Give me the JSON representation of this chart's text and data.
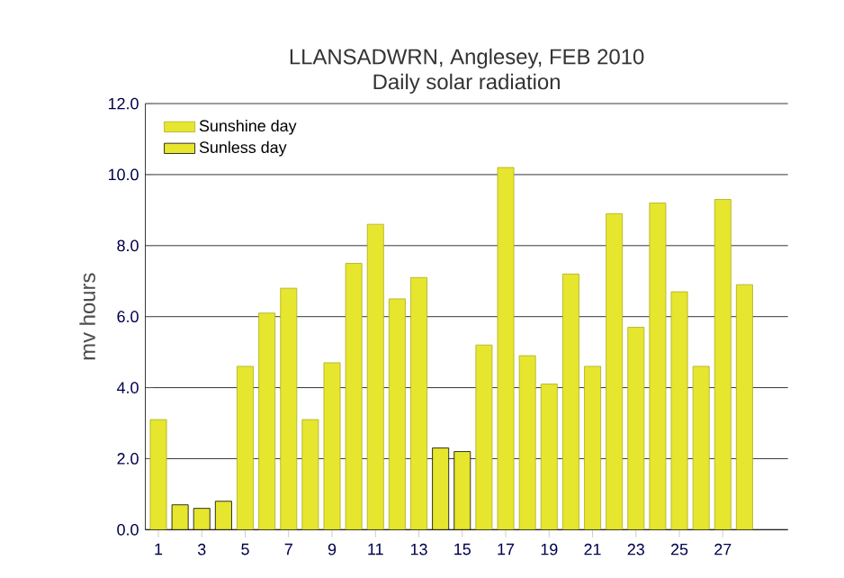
{
  "chart_data": {
    "type": "bar",
    "title": "LLANSADWRN, Anglesey, FEB 2010",
    "subtitle": "Daily solar radiation",
    "ylabel": "mv hours",
    "categories": [
      "1",
      null,
      "3",
      null,
      "5",
      null,
      "7",
      null,
      "9",
      null,
      "11",
      null,
      "13",
      null,
      "15",
      null,
      "17",
      null,
      "19",
      null,
      "21",
      null,
      "23",
      null,
      "25",
      null,
      "27",
      null
    ],
    "series": [
      {
        "name": "Sunshine day",
        "color": "#e6e62e",
        "values": [
          3.1,
          null,
          null,
          null,
          4.6,
          6.1,
          6.8,
          3.1,
          4.7,
          7.5,
          8.6,
          6.5,
          7.1,
          null,
          null,
          5.2,
          10.2,
          4.9,
          4.1,
          7.2,
          4.6,
          8.9,
          5.7,
          9.2,
          6.7,
          4.6,
          9.3,
          6.9
        ]
      },
      {
        "name": "Sunless day",
        "color": "#e6e62e",
        "values": [
          null,
          0.7,
          0.6,
          0.8,
          null,
          null,
          null,
          null,
          null,
          null,
          null,
          null,
          null,
          2.3,
          2.2,
          null,
          null,
          null,
          null,
          null,
          null,
          null,
          null,
          null,
          null,
          null,
          null,
          null
        ]
      }
    ],
    "ylim": [
      0,
      12
    ],
    "yticks": [
      {
        "value": 0,
        "label": "0.0"
      },
      {
        "value": 2,
        "label": "2.0"
      },
      {
        "value": 4,
        "label": "4.0"
      },
      {
        "value": 6,
        "label": "6.0"
      },
      {
        "value": 8,
        "label": "8.0"
      },
      {
        "value": 10,
        "label": "10.0"
      },
      {
        "value": 12,
        "label": "12.0"
      }
    ],
    "grid": "y",
    "legend": "top left"
  }
}
